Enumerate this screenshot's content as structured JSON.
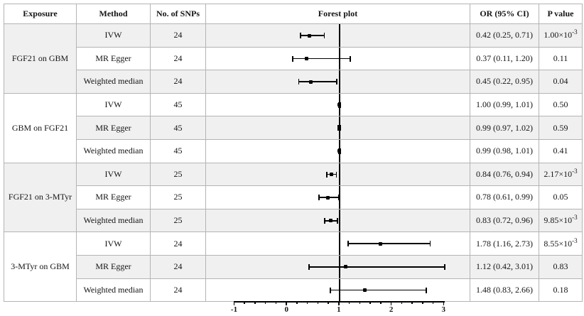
{
  "table": {
    "headers": {
      "exposure": "Exposure",
      "method": "Method",
      "snps": "No. of SNPs",
      "forest": "Forest plot",
      "or": "OR (95% CI)",
      "p": "P value"
    },
    "groups": [
      {
        "exposure": "FGF21 on GBM",
        "rows": [
          {
            "method": "IVW",
            "snps": "24",
            "or_ci": "0.42 (0.25, 0.71)",
            "p_base": "1.00×10",
            "p_exp": "-3"
          },
          {
            "method": "MR Egger",
            "snps": "24",
            "or_ci": "0.37 (0.11, 1.20)",
            "p_base": "0.11"
          },
          {
            "method": "Weighted median",
            "snps": "24",
            "or_ci": "0.45 (0.22, 0.95)",
            "p_base": "0.04"
          }
        ]
      },
      {
        "exposure": "GBM on FGF21",
        "rows": [
          {
            "method": "IVW",
            "snps": "45",
            "or_ci": "1.00 (0.99, 1.01)",
            "p_base": "0.50"
          },
          {
            "method": "MR Egger",
            "snps": "45",
            "or_ci": "0.99 (0.97, 1.02)",
            "p_base": "0.59"
          },
          {
            "method": "Weighted median",
            "snps": "45",
            "or_ci": "0.99 (0.98, 1.01)",
            "p_base": "0.41"
          }
        ]
      },
      {
        "exposure": "FGF21 on 3-MTyr",
        "rows": [
          {
            "method": "IVW",
            "snps": "25",
            "or_ci": "0.84 (0.76, 0.94)",
            "p_base": "2.17×10",
            "p_exp": "-3"
          },
          {
            "method": "MR Egger",
            "snps": "25",
            "or_ci": "0.78 (0.61, 0.99)",
            "p_base": "0.05"
          },
          {
            "method": "Weighted median",
            "snps": "25",
            "or_ci": "0.83 (0.72, 0.96)",
            "p_base": "9.85×10",
            "p_exp": "-3"
          }
        ]
      },
      {
        "exposure": "3-MTyr on GBM",
        "rows": [
          {
            "method": "IVW",
            "snps": "24",
            "or_ci": "1.78 (1.16, 2.73)",
            "p_base": "8.55×10",
            "p_exp": "-3"
          },
          {
            "method": "MR Egger",
            "snps": "24",
            "or_ci": "1.12 (0.42, 3.01)",
            "p_base": "0.83"
          },
          {
            "method": "Weighted median",
            "snps": "24",
            "or_ci": "1.48 (0.83, 2.66)",
            "p_base": "0.18"
          }
        ]
      }
    ]
  },
  "chart_data": {
    "type": "forest",
    "title": "Forest plot",
    "axis": {
      "min": -1,
      "max": 3,
      "major_ticks": [
        -1,
        0,
        1,
        2,
        3
      ],
      "tick_labels": [
        "-1",
        "0",
        "1",
        "2",
        "3"
      ],
      "minor_step": 0.2,
      "reference_line": 1
    },
    "points": [
      {
        "group": "FGF21 on GBM",
        "method": "IVW",
        "snps": 24,
        "or": 0.42,
        "lo": 0.25,
        "hi": 0.71,
        "p": 0.001
      },
      {
        "group": "FGF21 on GBM",
        "method": "MR Egger",
        "snps": 24,
        "or": 0.37,
        "lo": 0.11,
        "hi": 1.2,
        "p": 0.11
      },
      {
        "group": "FGF21 on GBM",
        "method": "Weighted median",
        "snps": 24,
        "or": 0.45,
        "lo": 0.22,
        "hi": 0.95,
        "p": 0.04
      },
      {
        "group": "GBM on FGF21",
        "method": "IVW",
        "snps": 45,
        "or": 1.0,
        "lo": 0.99,
        "hi": 1.01,
        "p": 0.5
      },
      {
        "group": "GBM on FGF21",
        "method": "MR Egger",
        "snps": 45,
        "or": 0.99,
        "lo": 0.97,
        "hi": 1.02,
        "p": 0.59
      },
      {
        "group": "GBM on FGF21",
        "method": "Weighted median",
        "snps": 45,
        "or": 0.99,
        "lo": 0.98,
        "hi": 1.01,
        "p": 0.41
      },
      {
        "group": "FGF21 on 3-MTyr",
        "method": "IVW",
        "snps": 25,
        "or": 0.84,
        "lo": 0.76,
        "hi": 0.94,
        "p": 0.00217
      },
      {
        "group": "FGF21 on 3-MTyr",
        "method": "MR Egger",
        "snps": 25,
        "or": 0.78,
        "lo": 0.61,
        "hi": 0.99,
        "p": 0.05
      },
      {
        "group": "FGF21 on 3-MTyr",
        "method": "Weighted median",
        "snps": 25,
        "or": 0.83,
        "lo": 0.72,
        "hi": 0.96,
        "p": 0.00985
      },
      {
        "group": "3-MTyr on GBM",
        "method": "IVW",
        "snps": 24,
        "or": 1.78,
        "lo": 1.16,
        "hi": 2.73,
        "p": 0.00855
      },
      {
        "group": "3-MTyr on GBM",
        "method": "MR Egger",
        "snps": 24,
        "or": 1.12,
        "lo": 0.42,
        "hi": 3.01,
        "p": 0.83
      },
      {
        "group": "3-MTyr on GBM",
        "method": "Weighted median",
        "snps": 24,
        "or": 1.48,
        "lo": 0.83,
        "hi": 2.66,
        "p": 0.18
      }
    ]
  }
}
